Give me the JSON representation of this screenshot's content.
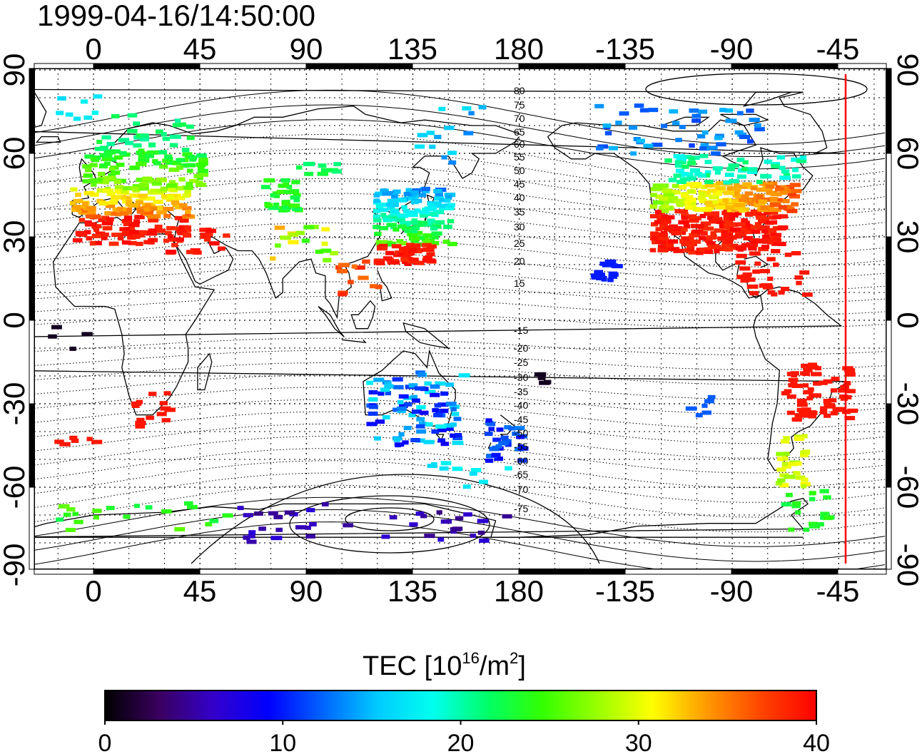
{
  "timestamp": "1999-04-16/14:50:00",
  "lon_ticks": [
    "0",
    "45",
    "90",
    "135",
    "180",
    "-135",
    "-90",
    "-45"
  ],
  "lat_ticks": [
    "90",
    "60",
    "30",
    "0",
    "-30",
    "-60",
    "-90"
  ],
  "contour_labels": [
    "80",
    "75",
    "70",
    "65",
    "60",
    "55",
    "50",
    "45",
    "40",
    "35",
    "30",
    "25",
    "20",
    "15",
    "-15",
    "-20",
    "-25",
    "-30",
    "-35",
    "-40",
    "-45",
    "-50",
    "-55",
    "-60",
    "-65",
    "-70",
    "-75"
  ],
  "colorbar": {
    "title_prefix": "TEC  [10",
    "title_sup1": "16",
    "title_mid": "/m",
    "title_sup2": "2",
    "title_suffix": "]",
    "tick_labels": [
      "0",
      "10",
      "20",
      "30",
      "40"
    ],
    "stops": [
      "#000000",
      "#3a0060",
      "#3300cc",
      "#0000ff",
      "#0066ff",
      "#00ccff",
      "#00ffee",
      "#00ff66",
      "#33ff00",
      "#99ff00",
      "#ffff00",
      "#ff9900",
      "#ff4400",
      "#ff0000"
    ]
  },
  "terminator_color": "#ff0000"
}
